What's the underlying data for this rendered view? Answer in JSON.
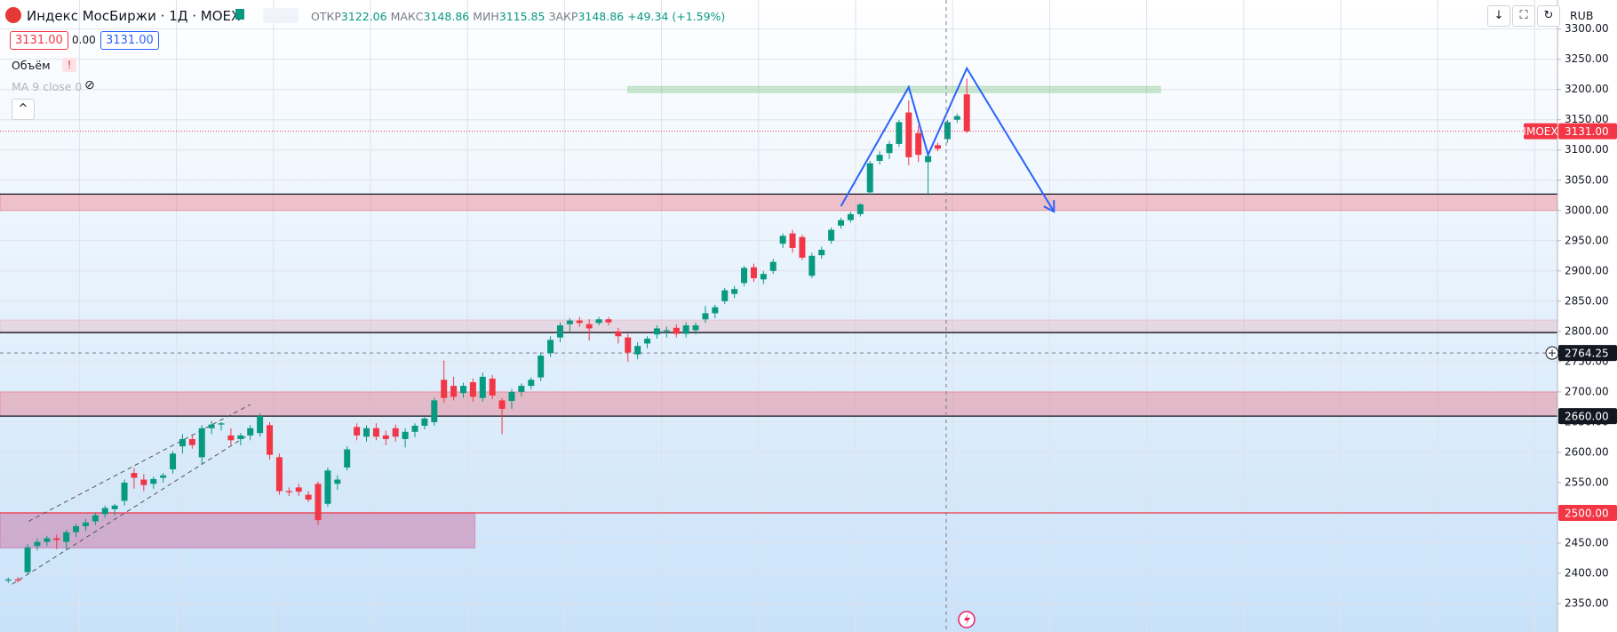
{
  "header": {
    "title": "Индекс МосБиржи · 1Д · MOEX",
    "open_label": "ОТКР",
    "open": "3122.06",
    "high_label": "МАКС",
    "high": "3148.86",
    "low_label": "МИН",
    "low": "3115.85",
    "close_label": "ЗАКР",
    "close": "3148.86",
    "change": "+49.34 (+1.59%)",
    "currency": "RUB"
  },
  "order": {
    "sell": "3131.00",
    "spread": "0.00",
    "buy": "3131.00"
  },
  "indicators": [
    "Объём",
    "MA 9 close 0"
  ],
  "chart_data": {
    "type": "candlestick",
    "symbol": "IMOEX",
    "up_color": "#089981",
    "down_color": "#f23645",
    "open": [
      2388,
      2390,
      2402,
      2445,
      2452,
      2458,
      2452,
      2468,
      2478,
      2486,
      2498,
      2506,
      2520,
      2566,
      2555,
      2548,
      2558,
      2572,
      2610,
      2622,
      2592,
      2640,
      2646,
      2628,
      2622,
      2628,
      2632,
      2645,
      2592,
      2536,
      2542,
      2530,
      2548,
      2515,
      2548,
      2575,
      2642,
      2626,
      2640,
      2628,
      2640,
      2622,
      2634,
      2644,
      2650,
      2720,
      2710,
      2698,
      2716,
      2690,
      2722,
      2686,
      2685,
      2700,
      2710,
      2724,
      2764,
      2790,
      2812,
      2818,
      2812,
      2814,
      2820,
      2800,
      2790,
      2762,
      2780,
      2795,
      2800,
      2806,
      2796,
      2802,
      2820,
      2830,
      2850,
      2862,
      2880,
      2906,
      2886,
      2900,
      2945,
      2962,
      2956,
      2892,
      2926,
      2950,
      2975,
      2984,
      2994,
      3030,
      3082,
      3095,
      3110,
      3162,
      3128,
      3080,
      3108,
      3118,
      3150,
      3192
    ],
    "high": [
      2393,
      2394,
      2448,
      2458,
      2462,
      2464,
      2472,
      2482,
      2490,
      2500,
      2512,
      2515,
      2555,
      2574,
      2564,
      2560,
      2566,
      2602,
      2630,
      2628,
      2645,
      2652,
      2650,
      2640,
      2632,
      2645,
      2665,
      2650,
      2598,
      2542,
      2548,
      2536,
      2552,
      2575,
      2562,
      2610,
      2648,
      2645,
      2648,
      2636,
      2646,
      2640,
      2648,
      2660,
      2690,
      2752,
      2725,
      2715,
      2722,
      2732,
      2728,
      2690,
      2705,
      2714,
      2724,
      2765,
      2792,
      2815,
      2822,
      2824,
      2820,
      2824,
      2824,
      2806,
      2796,
      2782,
      2792,
      2810,
      2808,
      2812,
      2815,
      2815,
      2842,
      2844,
      2872,
      2875,
      2908,
      2912,
      2900,
      2920,
      2962,
      2968,
      2960,
      2930,
      2940,
      2972,
      2988,
      2998,
      3012,
      3082,
      3098,
      3115,
      3150,
      3182,
      3140,
      3095,
      3112,
      3150,
      3160,
      3218
    ],
    "low": [
      2384,
      2385,
      2398,
      2438,
      2445,
      2440,
      2440,
      2460,
      2470,
      2480,
      2492,
      2496,
      2512,
      2540,
      2536,
      2540,
      2550,
      2565,
      2598,
      2606,
      2580,
      2630,
      2636,
      2612,
      2612,
      2620,
      2626,
      2588,
      2530,
      2528,
      2528,
      2518,
      2480,
      2510,
      2538,
      2570,
      2620,
      2618,
      2620,
      2612,
      2618,
      2608,
      2625,
      2638,
      2644,
      2682,
      2686,
      2690,
      2684,
      2684,
      2688,
      2630,
      2672,
      2692,
      2704,
      2718,
      2758,
      2782,
      2800,
      2808,
      2785,
      2810,
      2810,
      2780,
      2750,
      2754,
      2772,
      2788,
      2790,
      2790,
      2790,
      2795,
      2814,
      2822,
      2845,
      2855,
      2875,
      2882,
      2878,
      2895,
      2938,
      2930,
      2918,
      2888,
      2920,
      2945,
      2970,
      2980,
      2990,
      3026,
      3076,
      3085,
      3105,
      3075,
      3080,
      3025,
      3098,
      3112,
      3145,
      3128
    ],
    "close": [
      2390,
      2388,
      2443,
      2452,
      2458,
      2455,
      2468,
      2478,
      2484,
      2496,
      2508,
      2512,
      2550,
      2558,
      2546,
      2556,
      2562,
      2598,
      2622,
      2612,
      2640,
      2646,
      2648,
      2620,
      2628,
      2640,
      2660,
      2596,
      2536,
      2534,
      2535,
      2522,
      2488,
      2570,
      2555,
      2605,
      2628,
      2640,
      2626,
      2622,
      2626,
      2634,
      2644,
      2656,
      2686,
      2690,
      2692,
      2710,
      2692,
      2725,
      2694,
      2672,
      2700,
      2710,
      2720,
      2760,
      2786,
      2810,
      2818,
      2814,
      2805,
      2820,
      2815,
      2792,
      2765,
      2776,
      2788,
      2805,
      2802,
      2796,
      2810,
      2810,
      2830,
      2840,
      2868,
      2870,
      2905,
      2888,
      2895,
      2915,
      2958,
      2938,
      2922,
      2925,
      2935,
      2968,
      2984,
      2994,
      3010,
      3078,
      3092,
      3110,
      3146,
      3088,
      3092,
      3090,
      3102,
      3146,
      3156,
      3131
    ],
    "xlim": [
      -0.85,
      160
    ],
    "ylim": [
      2303,
      3348
    ],
    "yticks": [
      {
        "value": 2350,
        "label": "2350.00"
      },
      {
        "value": 2400,
        "label": "2400.00"
      },
      {
        "value": 2450,
        "label": "2450.00"
      },
      {
        "value": 2500,
        "label": "2500.00"
      },
      {
        "value": 2550,
        "label": "2550.00"
      },
      {
        "value": 2600,
        "label": "2600.00"
      },
      {
        "value": 2650,
        "label": "2650.00"
      },
      {
        "value": 2700,
        "label": "2700.00"
      },
      {
        "value": 2750,
        "label": "2750.00"
      },
      {
        "value": 2800,
        "label": "2800.00"
      },
      {
        "value": 2850,
        "label": "2850.00"
      },
      {
        "value": 2900,
        "label": "2900.00"
      },
      {
        "value": 2950,
        "label": "2950.00"
      },
      {
        "value": 3000,
        "label": "3000.00"
      },
      {
        "value": 3050,
        "label": "3050.00"
      },
      {
        "value": 3100,
        "label": "3100.00"
      },
      {
        "value": 3150,
        "label": "3150.00"
      },
      {
        "value": 3200,
        "label": "3200.00"
      },
      {
        "value": 3250,
        "label": "3250.00"
      },
      {
        "value": 3300,
        "label": "3300.00"
      }
    ],
    "grid": true,
    "zones": [
      {
        "from": 3000,
        "to": 3027,
        "color": "rgba(242,54,69,0.28)"
      },
      {
        "from": 2798,
        "to": 2819,
        "color": "rgba(242,54,69,0.13)"
      },
      {
        "from": 2660,
        "to": 2700,
        "color": "rgba(242,54,69,0.28)"
      },
      {
        "from": 2442,
        "to": 2500,
        "x": [
          -0.85,
          48.2
        ],
        "color": "rgba(200,40,110,0.3)"
      },
      {
        "from": 3195,
        "to": 3205,
        "x": [
          64,
          119
        ],
        "color": "rgba(76,175,80,0.25)"
      }
    ],
    "levels": [
      {
        "value": 3027,
        "color": "#131722"
      },
      {
        "value": 2798,
        "color": "#131722"
      },
      {
        "value": 2660,
        "color": "#131722"
      },
      {
        "value": 2500,
        "color": "#f23645"
      }
    ],
    "pattern": {
      "x": [
        86,
        93,
        95,
        99,
        108
      ],
      "y": [
        3007,
        3204,
        3092,
        3235,
        2998
      ],
      "color": "#2962ff"
    },
    "channel": [
      {
        "x": [
          0.4,
          25.3
        ],
        "y": [
          2382,
          2634
        ]
      },
      {
        "x": [
          2.1,
          25
        ],
        "y": [
          2486,
          2679
        ]
      }
    ],
    "price_labels": [
      {
        "value": 3131,
        "label": "3131.00",
        "color": "#f23645"
      },
      {
        "value": 2764.25,
        "label": "2764.25",
        "color": "#131722"
      },
      {
        "value": 2660,
        "label": "2660.00",
        "color": "#131722"
      },
      {
        "value": 2500,
        "label": "2500.00",
        "color": "#f23645"
      }
    ]
  }
}
